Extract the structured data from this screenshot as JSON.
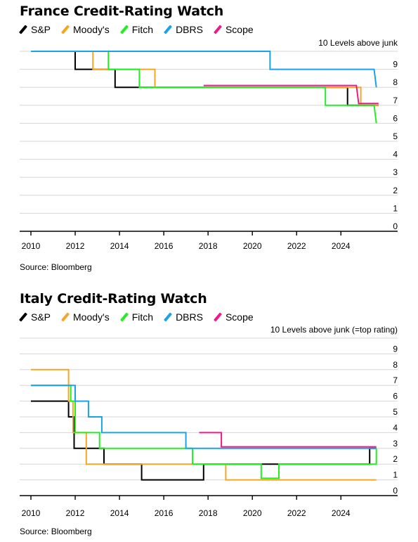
{
  "chart_data": [
    {
      "type": "line",
      "title": "France Credit-Rating Watch",
      "ylabel": "10 Levels above junk",
      "source": "Source: Bloomberg",
      "xlim": [
        2010,
        2025.8
      ],
      "ylim": [
        0,
        10
      ],
      "x_ticks": [
        "2010",
        "2012",
        "2014",
        "2016",
        "2018",
        "2020",
        "2022",
        "2024"
      ],
      "y_ticks": [
        "0",
        "1",
        "2",
        "3",
        "4",
        "5",
        "6",
        "7",
        "8",
        "9"
      ],
      "grid": true,
      "legend_position": "top-left",
      "series": [
        {
          "name": "S&P",
          "color": "#000000",
          "points": [
            [
              2010.0,
              10
            ],
            [
              2012.0,
              10
            ],
            [
              2012.0,
              9
            ],
            [
              2013.8,
              9
            ],
            [
              2013.8,
              8
            ],
            [
              2024.3,
              8
            ],
            [
              2024.3,
              7
            ],
            [
              2025.7,
              7
            ]
          ]
        },
        {
          "name": "Moody's",
          "color": "#f5a623",
          "points": [
            [
              2010.0,
              10
            ],
            [
              2012.8,
              10
            ],
            [
              2012.8,
              9
            ],
            [
              2015.6,
              9
            ],
            [
              2015.6,
              8
            ],
            [
              2024.9,
              8
            ],
            [
              2024.9,
              7
            ],
            [
              2025.7,
              7
            ]
          ]
        },
        {
          "name": "Fitch",
          "color": "#22ee22",
          "points": [
            [
              2010.0,
              10
            ],
            [
              2013.5,
              10
            ],
            [
              2013.5,
              9
            ],
            [
              2014.9,
              9
            ],
            [
              2014.9,
              8
            ],
            [
              2023.3,
              8
            ],
            [
              2023.3,
              7
            ],
            [
              2025.5,
              7
            ],
            [
              2025.6,
              6
            ]
          ]
        },
        {
          "name": "DBRS",
          "color": "#1aa3e6",
          "points": [
            [
              2010.0,
              10
            ],
            [
              2020.8,
              10
            ],
            [
              2020.8,
              9
            ],
            [
              2025.5,
              9
            ],
            [
              2025.6,
              8
            ]
          ]
        },
        {
          "name": "Scope",
          "color": "#ee1a8c",
          "points": [
            [
              2017.8,
              8.1
            ],
            [
              2024.7,
              8.1
            ],
            [
              2024.8,
              7.1
            ],
            [
              2025.7,
              7.1
            ]
          ]
        }
      ]
    },
    {
      "type": "line",
      "title": "Italy Credit-Rating Watch",
      "ylabel": "10 Levels above junk (=top rating)",
      "source": "Source: Bloomberg",
      "xlim": [
        2010,
        2025.8
      ],
      "ylim": [
        0,
        10
      ],
      "x_ticks": [
        "2010",
        "2012",
        "2014",
        "2016",
        "2018",
        "2020",
        "2022",
        "2024"
      ],
      "y_ticks": [
        "0",
        "1",
        "2",
        "3",
        "4",
        "5",
        "6",
        "7",
        "8",
        "9"
      ],
      "grid": true,
      "legend_position": "top-left",
      "series": [
        {
          "name": "S&P",
          "color": "#000000",
          "points": [
            [
              2010.0,
              6
            ],
            [
              2011.7,
              6
            ],
            [
              2011.7,
              5
            ],
            [
              2011.95,
              5
            ],
            [
              2011.95,
              3
            ],
            [
              2013.3,
              3
            ],
            [
              2013.3,
              2
            ],
            [
              2015.0,
              2
            ],
            [
              2015.0,
              1
            ],
            [
              2017.8,
              1
            ],
            [
              2017.8,
              2
            ],
            [
              2025.3,
              2
            ],
            [
              2025.3,
              3
            ],
            [
              2025.6,
              3
            ]
          ]
        },
        {
          "name": "Moody's",
          "color": "#f5a623",
          "points": [
            [
              2010.0,
              8
            ],
            [
              2011.7,
              8
            ],
            [
              2011.7,
              6
            ],
            [
              2011.9,
              6
            ],
            [
              2011.9,
              4
            ],
            [
              2012.5,
              4
            ],
            [
              2012.5,
              2
            ],
            [
              2018.8,
              2
            ],
            [
              2018.8,
              1
            ],
            [
              2025.6,
              1
            ]
          ]
        },
        {
          "name": "Fitch",
          "color": "#22ee22",
          "points": [
            [
              2010.0,
              7
            ],
            [
              2011.8,
              7
            ],
            [
              2011.8,
              6
            ],
            [
              2012.0,
              6
            ],
            [
              2012.0,
              4
            ],
            [
              2013.1,
              4
            ],
            [
              2013.1,
              3
            ],
            [
              2017.3,
              3
            ],
            [
              2017.3,
              2
            ],
            [
              2020.4,
              2
            ],
            [
              2020.4,
              1.1
            ],
            [
              2021.2,
              1.1
            ],
            [
              2021.2,
              2
            ],
            [
              2025.6,
              2
            ],
            [
              2025.6,
              3
            ]
          ]
        },
        {
          "name": "DBRS",
          "color": "#1aa3e6",
          "points": [
            [
              2010.0,
              7
            ],
            [
              2012.0,
              7
            ],
            [
              2012.0,
              6
            ],
            [
              2012.6,
              6
            ],
            [
              2012.6,
              5
            ],
            [
              2013.2,
              5
            ],
            [
              2013.2,
              4
            ],
            [
              2017.0,
              4
            ],
            [
              2017.0,
              3
            ],
            [
              2025.6,
              3
            ]
          ]
        },
        {
          "name": "Scope",
          "color": "#ee1a8c",
          "points": [
            [
              2017.6,
              4
            ],
            [
              2018.6,
              4
            ],
            [
              2018.6,
              3.1
            ],
            [
              2025.6,
              3.1
            ]
          ]
        }
      ]
    }
  ]
}
